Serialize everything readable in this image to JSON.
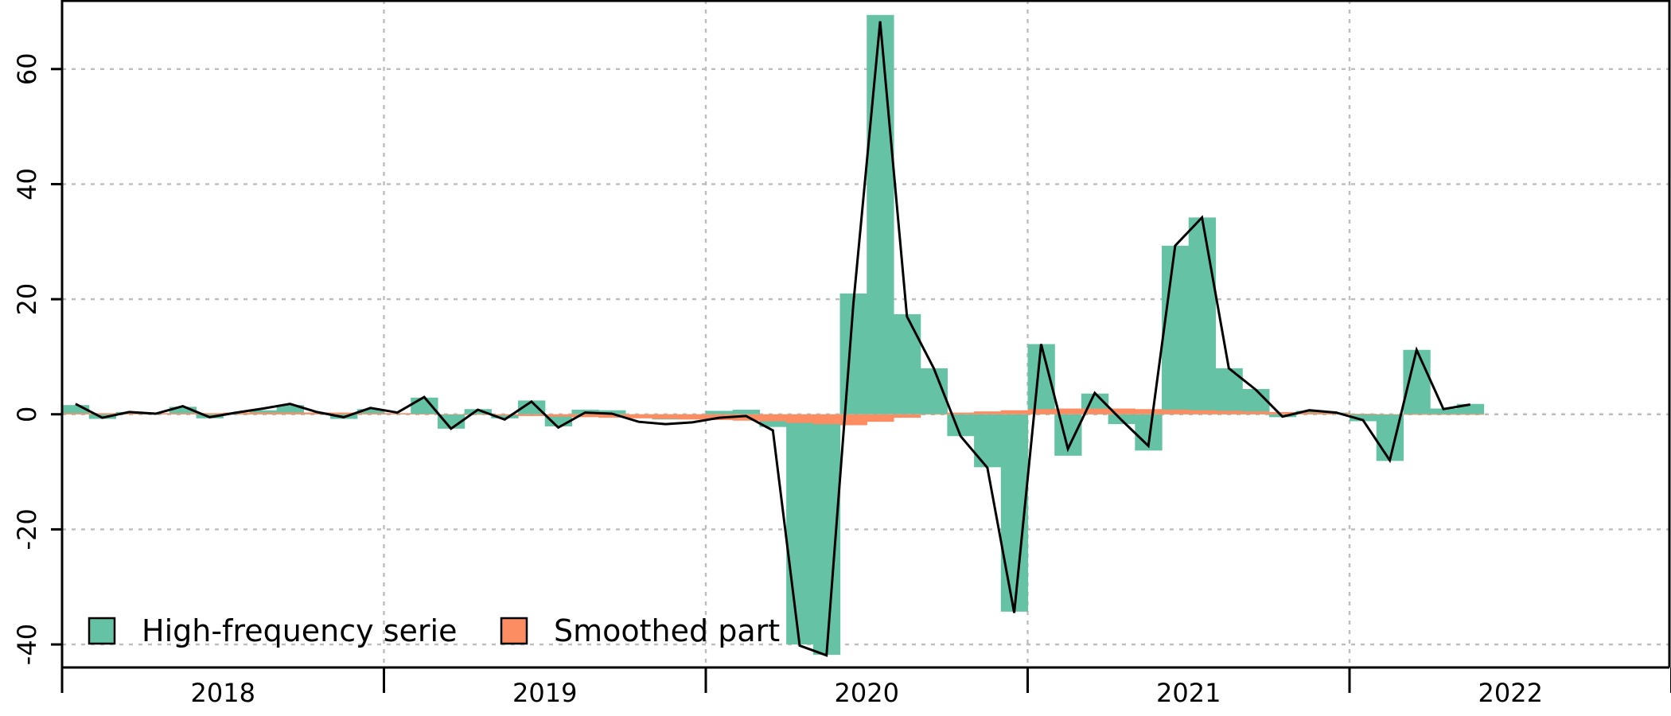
{
  "chart_data": {
    "type": "bar",
    "title": "",
    "xlabel": "",
    "ylabel": "",
    "ylim": [
      -44,
      72
    ],
    "y_ticks": [
      -40,
      -20,
      0,
      20,
      40,
      60
    ],
    "x_tick_labels": [
      "2018",
      "2019",
      "2020",
      "2021",
      "2022"
    ],
    "grid": true,
    "legend_position": "bottom-left",
    "start": "2018-01",
    "categories": [
      "2018-01",
      "2018-02",
      "2018-03",
      "2018-04",
      "2018-05",
      "2018-06",
      "2018-07",
      "2018-08",
      "2018-09",
      "2018-10",
      "2018-11",
      "2018-12",
      "2019-01",
      "2019-02",
      "2019-03",
      "2019-04",
      "2019-05",
      "2019-06",
      "2019-07",
      "2019-08",
      "2019-09",
      "2019-10",
      "2019-11",
      "2019-12",
      "2020-01",
      "2020-02",
      "2020-03",
      "2020-04",
      "2020-05",
      "2020-06",
      "2020-07",
      "2020-08",
      "2020-09",
      "2020-10",
      "2020-11",
      "2020-12",
      "2021-01",
      "2021-02",
      "2021-03",
      "2021-04",
      "2021-05",
      "2021-06",
      "2021-07",
      "2021-08",
      "2021-09",
      "2021-10",
      "2021-11",
      "2021-12",
      "2022-01",
      "2022-02",
      "2022-03",
      "2022-04",
      "2022-05"
    ],
    "series": [
      {
        "name": "High-frequency serie",
        "color": "#66c2a5",
        "values": [
          1.6,
          -0.8,
          0.4,
          0.1,
          1.3,
          -0.7,
          0.0,
          0.7,
          1.6,
          0.3,
          -0.8,
          0.9,
          0.1,
          2.9,
          -2.5,
          0.9,
          -0.7,
          2.4,
          -2.1,
          0.8,
          0.7,
          -0.6,
          -0.9,
          -0.5,
          0.6,
          0.8,
          -2.2,
          -40.0,
          -41.8,
          21.0,
          69.4,
          17.4,
          8.0,
          -3.8,
          -9.2,
          -34.3,
          12.2,
          -7.2,
          3.6,
          -1.7,
          -6.3,
          29.3,
          34.2,
          8.0,
          4.4,
          -0.5,
          0.6,
          0.3,
          -1.2,
          -8.1,
          11.2,
          1.0,
          1.8
        ]
      },
      {
        "name": "Smoothed part",
        "color": "#fc8d62",
        "values": [
          0.2,
          0.2,
          0.2,
          0.2,
          0.2,
          0.2,
          0.3,
          0.3,
          0.3,
          0.3,
          0.3,
          0.2,
          0.2,
          0.1,
          0.0,
          -0.1,
          -0.2,
          -0.3,
          -0.4,
          -0.5,
          -0.6,
          -0.7,
          -0.8,
          -0.9,
          -1.0,
          -1.1,
          -1.2,
          -1.5,
          -1.7,
          -1.9,
          -1.3,
          -0.6,
          0.0,
          0.3,
          0.5,
          0.7,
          0.9,
          1.0,
          1.0,
          1.0,
          0.9,
          0.8,
          0.7,
          0.6,
          0.5,
          0.4,
          0.3,
          0.2,
          0.1,
          0.0,
          -0.1,
          -0.1,
          -0.1
        ]
      }
    ],
    "line_values": [
      1.8,
      -0.6,
      0.4,
      0.1,
      1.4,
      -0.5,
      0.3,
      1.0,
      1.8,
      0.4,
      -0.5,
      1.1,
      0.3,
      3.0,
      -2.5,
      0.8,
      -0.9,
      2.2,
      -2.3,
      0.3,
      0.1,
      -1.3,
      -1.7,
      -1.4,
      -0.6,
      -0.3,
      -2.8,
      -40.2,
      -41.9,
      19.1,
      68.3,
      17.0,
      8.0,
      -3.8,
      -9.3,
      -34.5,
      12.2,
      -6.0,
      3.7,
      -1.0,
      -5.5,
      29.3,
      34.2,
      8.0,
      4.3,
      -0.4,
      0.7,
      0.3,
      -1.0,
      -8.0,
      11.2,
      0.9,
      1.7
    ]
  }
}
